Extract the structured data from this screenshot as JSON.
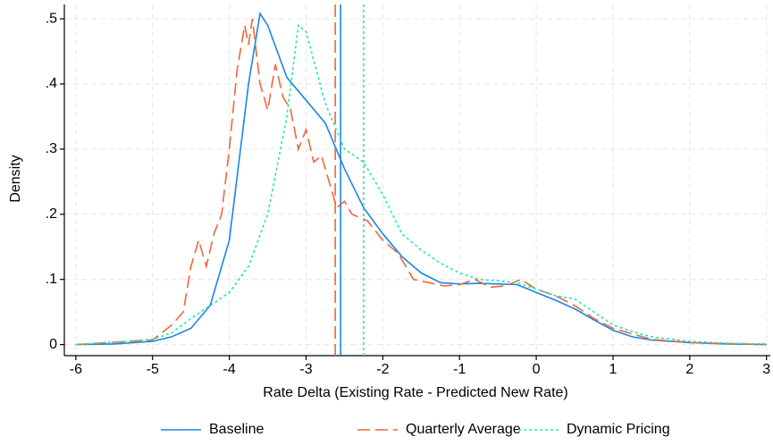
{
  "chart_data": {
    "type": "line",
    "x_label": "Rate Delta (Existing Rate - Predicted New Rate)",
    "y_label": "Density",
    "xlim": [
      -6.15,
      3.05
    ],
    "ylim": [
      -0.017,
      0.522
    ],
    "xticks": [
      -6,
      -5,
      -4,
      -3,
      -2,
      -1,
      0,
      1,
      2,
      3
    ],
    "yticks": [
      0,
      {
        "value": 0.1,
        "label": ".1"
      },
      {
        "value": 0.2,
        "label": ".2"
      },
      {
        "value": 0.3,
        "label": ".3"
      },
      {
        "value": 0.4,
        "label": ".4"
      },
      {
        "value": 0.5,
        "label": ".5"
      }
    ],
    "grid": true,
    "legend": "bottom",
    "series": [
      {
        "name": "Baseline",
        "color": "#1a85e8",
        "style": "solid",
        "vline": -2.55,
        "x": [
          -6,
          -5.5,
          -5,
          -4.75,
          -4.5,
          -4.25,
          -4,
          -3.75,
          -3.6,
          -3.5,
          -3.25,
          -3,
          -2.75,
          -2.5,
          -2.25,
          -2,
          -1.75,
          -1.5,
          -1.25,
          -1,
          -0.75,
          -0.5,
          -0.25,
          0,
          0.25,
          0.5,
          0.75,
          1,
          1.25,
          1.5,
          2,
          2.5,
          3
        ],
        "values": [
          0,
          0.001,
          0.005,
          0.012,
          0.025,
          0.06,
          0.16,
          0.4,
          0.508,
          0.49,
          0.41,
          0.375,
          0.34,
          0.27,
          0.21,
          0.17,
          0.135,
          0.11,
          0.095,
          0.093,
          0.094,
          0.093,
          0.092,
          0.08,
          0.068,
          0.055,
          0.038,
          0.022,
          0.012,
          0.007,
          0.003,
          0.001,
          0
        ]
      },
      {
        "name": "Quarterly Average",
        "color": "#f0663a",
        "style": "long",
        "vline": -2.62,
        "x": [
          -6,
          -5,
          -4.75,
          -4.6,
          -4.5,
          -4.4,
          -4.3,
          -4.2,
          -4.1,
          -4,
          -3.9,
          -3.8,
          -3.75,
          -3.7,
          -3.6,
          -3.5,
          -3.4,
          -3.3,
          -3.2,
          -3.1,
          -3,
          -2.9,
          -2.8,
          -2.7,
          -2.6,
          -2.5,
          -2.4,
          -2.2,
          -2,
          -1.8,
          -1.6,
          -1.4,
          -1.2,
          -1,
          -0.8,
          -0.6,
          -0.4,
          -0.2,
          0,
          0.25,
          0.5,
          0.75,
          1,
          1.5,
          2,
          3
        ],
        "values": [
          0,
          0.007,
          0.03,
          0.05,
          0.12,
          0.16,
          0.12,
          0.17,
          0.2,
          0.3,
          0.42,
          0.49,
          0.46,
          0.5,
          0.4,
          0.36,
          0.43,
          0.38,
          0.36,
          0.3,
          0.33,
          0.28,
          0.29,
          0.25,
          0.21,
          0.22,
          0.2,
          0.19,
          0.16,
          0.14,
          0.1,
          0.095,
          0.09,
          0.092,
          0.1,
          0.088,
          0.09,
          0.1,
          0.085,
          0.075,
          0.06,
          0.04,
          0.025,
          0.008,
          0.003,
          0
        ]
      },
      {
        "name": "Dynamic Pricing",
        "color": "#22e8a8",
        "style": "dot",
        "vline": -2.25,
        "x": [
          -6,
          -5,
          -4.75,
          -4.5,
          -4.25,
          -4,
          -3.75,
          -3.5,
          -3.25,
          -3.1,
          -3,
          -2.75,
          -2.5,
          -2.25,
          -2,
          -1.75,
          -1.5,
          -1.25,
          -1,
          -0.75,
          -0.5,
          -0.25,
          0,
          0.25,
          0.5,
          0.75,
          1,
          1.25,
          1.5,
          2,
          2.5,
          3
        ],
        "values": [
          0,
          0.008,
          0.018,
          0.04,
          0.06,
          0.08,
          0.12,
          0.2,
          0.35,
          0.49,
          0.48,
          0.37,
          0.3,
          0.28,
          0.23,
          0.17,
          0.145,
          0.125,
          0.11,
          0.1,
          0.098,
          0.095,
          0.085,
          0.075,
          0.07,
          0.05,
          0.03,
          0.02,
          0.012,
          0.005,
          0.002,
          0.001
        ]
      }
    ]
  }
}
